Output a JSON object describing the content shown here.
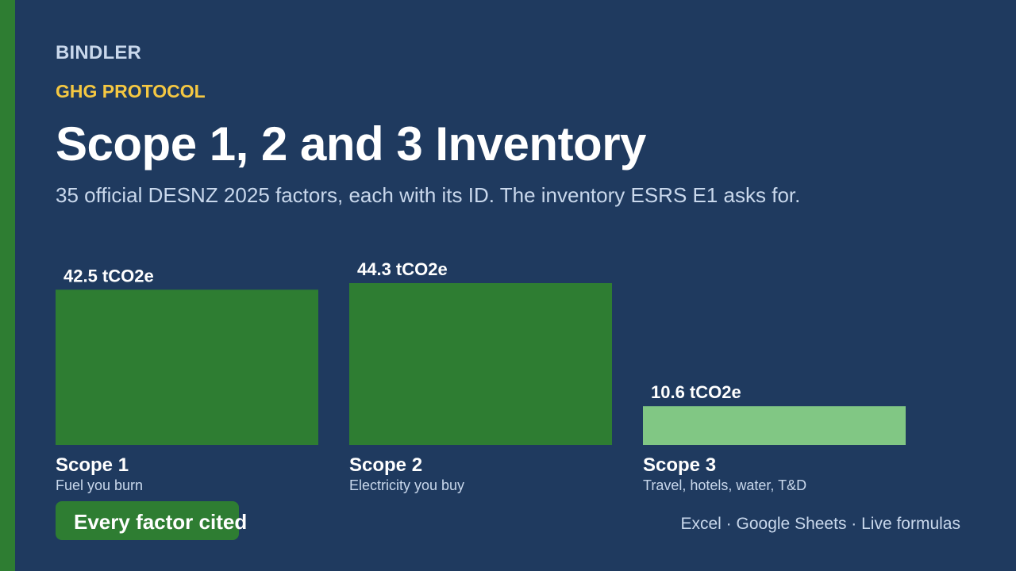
{
  "brand": "BINDLER",
  "eyebrow": "GHG PROTOCOL",
  "title": "Scope 1, 2 and 3 Inventory",
  "subtitle": "35 official DESNZ 2025 factors, each with its ID. The inventory ESRS E1 asks for.",
  "badge": "Every factor cited",
  "footer": "Excel · Google Sheets · Live formulas",
  "colors": {
    "background": "#1f3a5f",
    "accent_green": "#2e7d32",
    "light_green": "#81c784",
    "eyebrow_yellow": "#f5c842"
  },
  "chart_data": {
    "type": "bar",
    "categories": [
      "Scope 1",
      "Scope 2",
      "Scope 3"
    ],
    "descriptions": [
      "Fuel you burn",
      "Electricity you buy",
      "Travel, hotels, water, T&D"
    ],
    "values": [
      42.5,
      44.3,
      10.6
    ],
    "value_labels": [
      "42.5 tCO2e",
      "44.3 tCO2e",
      "10.6 tCO2e"
    ],
    "bar_colors": [
      "#2e7d32",
      "#2e7d32",
      "#81c784"
    ],
    "unit": "tCO2e",
    "ylim": [
      0,
      44.3
    ],
    "grid": false,
    "legend": "none"
  }
}
